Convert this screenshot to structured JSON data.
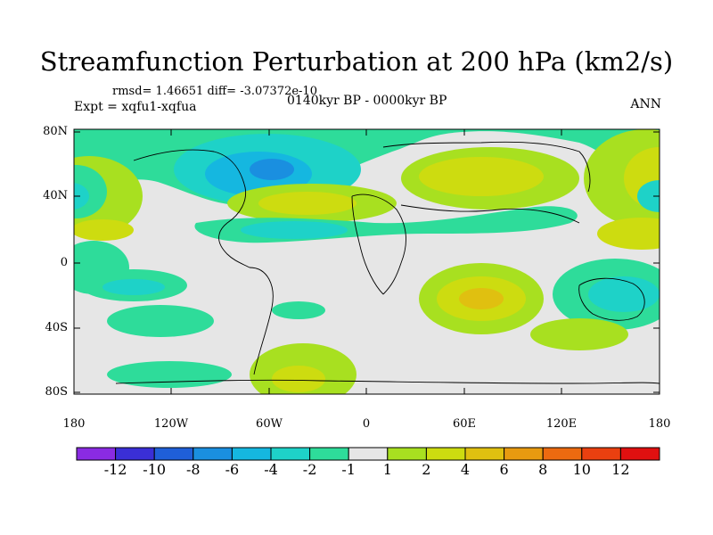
{
  "title": "Streamfunction Perturbation at 200 hPa (km2/s)",
  "stats": "rmsd= 1.46651 diff= -3.07372e-10",
  "experiment": "Expt = xqfu1-xqfua",
  "period": "0140kyr BP - 0000kyr BP",
  "season": "ANN",
  "lat_labels": [
    "80N",
    "40N",
    "0",
    "40S",
    "80S"
  ],
  "lon_labels": [
    "180",
    "120W",
    "60W",
    "0",
    "60E",
    "120E",
    "180"
  ],
  "colorbar": {
    "labels": [
      "-12",
      "-10",
      "-8",
      "-6",
      "-4",
      "-2",
      "-1",
      "1",
      "2",
      "4",
      "6",
      "8",
      "10",
      "12"
    ],
    "colors": [
      "#8a2be2",
      "#3a2fd6",
      "#1f5fd8",
      "#1a8fe0",
      "#15b7e0",
      "#1ed2c8",
      "#2edc9a",
      "#e6e6e6",
      "#a8e020",
      "#cddc10",
      "#e0c010",
      "#e89a10",
      "#ec6a10",
      "#ea4010",
      "#e01010"
    ]
  }
}
